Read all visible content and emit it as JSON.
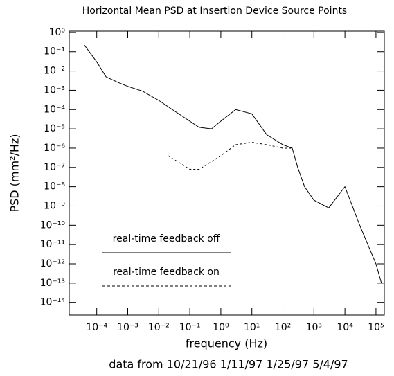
{
  "chart_data": {
    "type": "line",
    "title": "Horizontal Mean PSD at Insertion Device Source Points",
    "x_label": "frequency (Hz)",
    "y_label": "PSD (mm²/Hz)",
    "footer": "data from 10/21/96 1/11/97 1/25/97 5/4/97",
    "x_scale": "log",
    "y_scale": "log",
    "xlim": [
      1.3e-05,
      186000.0
    ],
    "ylim": [
      2.2e-15,
      1.17
    ],
    "xticks": [
      {
        "value": 0.0001,
        "label": "10⁻⁴"
      },
      {
        "value": 0.001,
        "label": "10⁻³"
      },
      {
        "value": 0.01,
        "label": "10⁻²"
      },
      {
        "value": 0.1,
        "label": "10⁻¹"
      },
      {
        "value": 1,
        "label": "10⁰"
      },
      {
        "value": 10,
        "label": "10¹"
      },
      {
        "value": 100,
        "label": "10²"
      },
      {
        "value": 1000,
        "label": "10³"
      },
      {
        "value": 10000,
        "label": "10⁴"
      },
      {
        "value": 100000,
        "label": "10⁵"
      }
    ],
    "yticks": [
      {
        "value": 1,
        "label": "10⁰"
      },
      {
        "value": 0.1,
        "label": "10⁻¹"
      },
      {
        "value": 0.01,
        "label": "10⁻²"
      },
      {
        "value": 0.001,
        "label": "10⁻³"
      },
      {
        "value": 0.0001,
        "label": "10⁻⁴"
      },
      {
        "value": 1e-05,
        "label": "10⁻⁵"
      },
      {
        "value": 1e-06,
        "label": "10⁻⁶"
      },
      {
        "value": 1e-07,
        "label": "10⁻⁷"
      },
      {
        "value": 1e-08,
        "label": "10⁻⁸"
      },
      {
        "value": 1e-09,
        "label": "10⁻⁹"
      },
      {
        "value": 1e-10,
        "label": "10⁻¹⁰"
      },
      {
        "value": 1e-11,
        "label": "10⁻¹¹"
      },
      {
        "value": 1e-12,
        "label": "10⁻¹²"
      },
      {
        "value": 1e-13,
        "label": "10⁻¹³"
      },
      {
        "value": 1e-14,
        "label": "10⁻¹⁴"
      }
    ],
    "series": [
      {
        "name": "real-time feedback off",
        "color": "#000000",
        "dash": false,
        "x": [
          4e-05,
          0.0001,
          0.0002,
          0.0005,
          0.001,
          0.003,
          0.01,
          0.03,
          0.1,
          0.2,
          0.5,
          1,
          3,
          10,
          30,
          100,
          200,
          300,
          500,
          1000,
          3000,
          10000,
          30000,
          100000,
          150000
        ],
        "values": [
          0.22,
          0.03,
          0.005,
          0.0025,
          0.0016,
          0.0009,
          0.0003,
          9e-05,
          2.5e-05,
          1.2e-05,
          1e-05,
          2.5e-05,
          0.0001,
          6e-05,
          5e-06,
          1.5e-06,
          1e-06,
          1e-07,
          1e-08,
          2e-09,
          8e-10,
          1e-08,
          1e-10,
          1e-12,
          1e-13
        ]
      },
      {
        "name": "real-time feedback on",
        "color": "#000000",
        "dash": true,
        "x": [
          0.02,
          0.1,
          0.2,
          1,
          3,
          10,
          30,
          100,
          200
        ],
        "values": [
          4e-07,
          8e-08,
          8e-08,
          4e-07,
          1.5e-06,
          2e-06,
          1.5e-06,
          1e-06,
          1e-06
        ]
      }
    ]
  }
}
